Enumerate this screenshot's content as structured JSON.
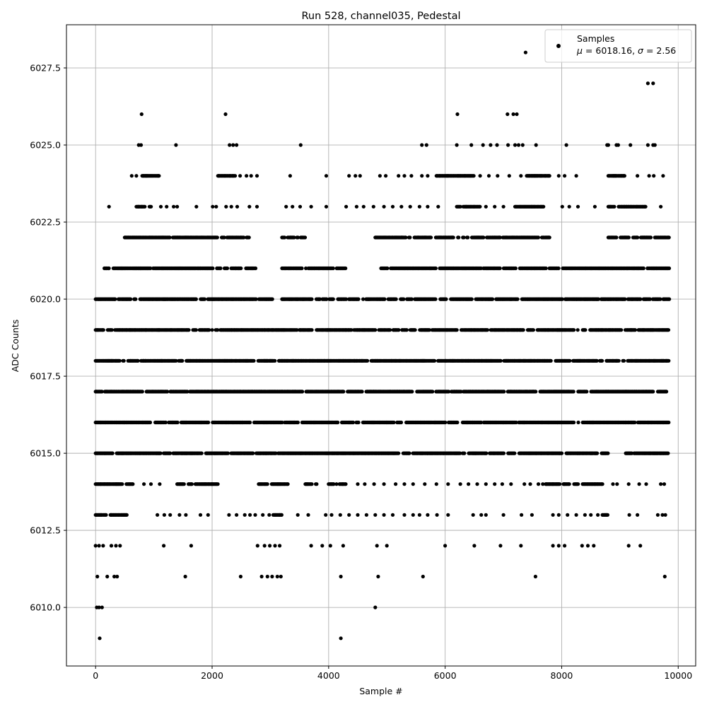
{
  "chart_data": {
    "type": "scatter",
    "title": "Run 528, channel035, Pedestal",
    "xlabel": "Sample #",
    "ylabel": "ADC Counts",
    "xlim": [
      -500,
      10300
    ],
    "ylim": [
      6008.1,
      6028.9
    ],
    "xticks": [
      0,
      2000,
      4000,
      6000,
      8000,
      10000
    ],
    "yticks": [
      6010.0,
      6012.5,
      6015.0,
      6017.5,
      6020.0,
      6022.5,
      6025.0,
      6027.5
    ],
    "xtick_labels": [
      "0",
      "2000",
      "4000",
      "6000",
      "8000",
      "10000"
    ],
    "ytick_labels": [
      "6010.0",
      "6012.5",
      "6015.0",
      "6017.5",
      "6020.0",
      "6022.5",
      "6025.0",
      "6027.5"
    ],
    "grid": true,
    "legend": {
      "position": "top-right",
      "label": "Samples",
      "stats": {
        "mu_label": "μ",
        "mu": "6018.16",
        "sigma_label": "σ",
        "sigma": "2.56"
      }
    },
    "marker_color": "#000000",
    "x_extent": [
      0,
      9850
    ],
    "series": [
      {
        "name": "Samples",
        "note": "dense bands: each level listed with the x-ranges where points densely fill it",
        "dense_levels": [
          {
            "y": 6015,
            "ranges": [
              [
                0,
                5700
              ],
              [
                5700,
                8800
              ],
              [
                9100,
                9840
              ]
            ]
          },
          {
            "y": 6016,
            "ranges": [
              [
                0,
                6220
              ],
              [
                6300,
                9850
              ]
            ]
          },
          {
            "y": 6017,
            "ranges": [
              [
                0,
                9850
              ]
            ]
          },
          {
            "y": 6018,
            "ranges": [
              [
                0,
                9850
              ]
            ]
          },
          {
            "y": 6019,
            "ranges": [
              [
                0,
                9850
              ]
            ]
          },
          {
            "y": 6020,
            "ranges": [
              [
                0,
                3050
              ],
              [
                3200,
                9850
              ]
            ]
          },
          {
            "y": 6021,
            "ranges": [
              [
                150,
                2750
              ],
              [
                3200,
                4300
              ],
              [
                4900,
                9850
              ]
            ]
          },
          {
            "y": 6022,
            "ranges": [
              [
                500,
                2650
              ],
              [
                3200,
                3600
              ],
              [
                4800,
                7800
              ],
              [
                8800,
                9850
              ]
            ]
          },
          {
            "y": 6014,
            "ranges": [
              [
                0,
                650
              ],
              [
                1400,
                2100
              ],
              [
                2800,
                3300
              ],
              [
                3600,
                3850
              ],
              [
                4000,
                4300
              ],
              [
                7600,
                8700
              ]
            ]
          },
          {
            "y": 6013,
            "ranges": [
              [
                0,
                550
              ],
              [
                3050,
                3200
              ],
              [
                8700,
                8800
              ]
            ]
          },
          {
            "y": 6023,
            "ranges": [
              [
                700,
                1000
              ],
              [
                6200,
                6600
              ],
              [
                7200,
                7700
              ],
              [
                8800,
                9450
              ]
            ]
          },
          {
            "y": 6024,
            "ranges": [
              [
                800,
                1100
              ],
              [
                2100,
                2400
              ],
              [
                5850,
                6500
              ],
              [
                7400,
                7800
              ],
              [
                8800,
                9100
              ]
            ]
          }
        ],
        "sparse_points": [
          [
            20,
            6010
          ],
          [
            60,
            6010
          ],
          [
            110,
            6010
          ],
          [
            70,
            6009
          ],
          [
            4210,
            6009
          ],
          [
            4800,
            6010
          ],
          [
            30,
            6011
          ],
          [
            200,
            6011
          ],
          [
            320,
            6011
          ],
          [
            370,
            6011
          ],
          [
            1540,
            6011
          ],
          [
            2490,
            6011
          ],
          [
            2850,
            6011
          ],
          [
            2950,
            6011
          ],
          [
            3030,
            6011
          ],
          [
            3120,
            6011
          ],
          [
            3180,
            6011
          ],
          [
            4210,
            6011
          ],
          [
            4850,
            6011
          ],
          [
            5620,
            6011
          ],
          [
            7550,
            6011
          ],
          [
            9770,
            6011
          ],
          [
            0,
            6012
          ],
          [
            60,
            6012
          ],
          [
            130,
            6012
          ],
          [
            270,
            6012
          ],
          [
            350,
            6012
          ],
          [
            420,
            6012
          ],
          [
            1170,
            6012
          ],
          [
            1640,
            6012
          ],
          [
            2780,
            6012
          ],
          [
            2900,
            6012
          ],
          [
            2990,
            6012
          ],
          [
            3080,
            6012
          ],
          [
            3160,
            6012
          ],
          [
            3700,
            6012
          ],
          [
            3890,
            6012
          ],
          [
            4030,
            6012
          ],
          [
            4250,
            6012
          ],
          [
            4830,
            6012
          ],
          [
            5000,
            6012
          ],
          [
            6000,
            6012
          ],
          [
            6500,
            6012
          ],
          [
            6950,
            6012
          ],
          [
            7300,
            6012
          ],
          [
            7850,
            6012
          ],
          [
            7950,
            6012
          ],
          [
            8050,
            6012
          ],
          [
            8350,
            6012
          ],
          [
            8450,
            6012
          ],
          [
            8550,
            6012
          ],
          [
            9150,
            6012
          ],
          [
            9350,
            6012
          ],
          [
            1060,
            6013
          ],
          [
            1180,
            6013
          ],
          [
            1280,
            6013
          ],
          [
            1440,
            6013
          ],
          [
            1550,
            6013
          ],
          [
            1800,
            6013
          ],
          [
            1930,
            6013
          ],
          [
            2290,
            6013
          ],
          [
            2420,
            6013
          ],
          [
            2560,
            6013
          ],
          [
            2650,
            6013
          ],
          [
            2740,
            6013
          ],
          [
            2870,
            6013
          ],
          [
            2980,
            6013
          ],
          [
            3470,
            6013
          ],
          [
            3650,
            6013
          ],
          [
            3950,
            6013
          ],
          [
            4050,
            6013
          ],
          [
            4200,
            6013
          ],
          [
            4350,
            6013
          ],
          [
            4500,
            6013
          ],
          [
            4650,
            6013
          ],
          [
            4800,
            6013
          ],
          [
            4950,
            6013
          ],
          [
            5100,
            6013
          ],
          [
            5300,
            6013
          ],
          [
            5450,
            6013
          ],
          [
            5560,
            6013
          ],
          [
            5700,
            6013
          ],
          [
            5860,
            6013
          ],
          [
            6050,
            6013
          ],
          [
            6480,
            6013
          ],
          [
            6620,
            6013
          ],
          [
            6700,
            6013
          ],
          [
            7000,
            6013
          ],
          [
            7310,
            6013
          ],
          [
            7490,
            6013
          ],
          [
            7850,
            6013
          ],
          [
            7950,
            6013
          ],
          [
            8100,
            6013
          ],
          [
            8250,
            6013
          ],
          [
            8400,
            6013
          ],
          [
            8500,
            6013
          ],
          [
            8620,
            6013
          ],
          [
            9160,
            6013
          ],
          [
            9300,
            6013
          ],
          [
            9650,
            6013
          ],
          [
            9730,
            6013
          ],
          [
            9780,
            6013
          ],
          [
            830,
            6014
          ],
          [
            950,
            6014
          ],
          [
            1100,
            6014
          ],
          [
            4500,
            6014
          ],
          [
            4620,
            6014
          ],
          [
            4780,
            6014
          ],
          [
            4950,
            6014
          ],
          [
            5150,
            6014
          ],
          [
            5300,
            6014
          ],
          [
            5450,
            6014
          ],
          [
            5650,
            6014
          ],
          [
            5850,
            6014
          ],
          [
            6050,
            6014
          ],
          [
            6260,
            6014
          ],
          [
            6400,
            6014
          ],
          [
            6550,
            6014
          ],
          [
            6700,
            6014
          ],
          [
            6850,
            6014
          ],
          [
            6980,
            6014
          ],
          [
            7130,
            6014
          ],
          [
            7360,
            6014
          ],
          [
            7460,
            6014
          ],
          [
            8880,
            6014
          ],
          [
            8950,
            6014
          ],
          [
            9150,
            6014
          ],
          [
            9330,
            6014
          ],
          [
            9450,
            6014
          ],
          [
            9700,
            6014
          ],
          [
            9760,
            6014
          ],
          [
            230,
            6023
          ],
          [
            1120,
            6023
          ],
          [
            1220,
            6023
          ],
          [
            1340,
            6023
          ],
          [
            1400,
            6023
          ],
          [
            1730,
            6023
          ],
          [
            2010,
            6023
          ],
          [
            2070,
            6023
          ],
          [
            2240,
            6023
          ],
          [
            2330,
            6023
          ],
          [
            2430,
            6023
          ],
          [
            2640,
            6023
          ],
          [
            2770,
            6023
          ],
          [
            3270,
            6023
          ],
          [
            3380,
            6023
          ],
          [
            3510,
            6023
          ],
          [
            3700,
            6023
          ],
          [
            3960,
            6023
          ],
          [
            4300,
            6023
          ],
          [
            4480,
            6023
          ],
          [
            4600,
            6023
          ],
          [
            4770,
            6023
          ],
          [
            4950,
            6023
          ],
          [
            5100,
            6023
          ],
          [
            5250,
            6023
          ],
          [
            5400,
            6023
          ],
          [
            5560,
            6023
          ],
          [
            5700,
            6023
          ],
          [
            5880,
            6023
          ],
          [
            6700,
            6023
          ],
          [
            6850,
            6023
          ],
          [
            7000,
            6023
          ],
          [
            8010,
            6023
          ],
          [
            8130,
            6023
          ],
          [
            8280,
            6023
          ],
          [
            8570,
            6023
          ],
          [
            9700,
            6023
          ],
          [
            620,
            6024
          ],
          [
            700,
            6024
          ],
          [
            2480,
            6024
          ],
          [
            2590,
            6024
          ],
          [
            2670,
            6024
          ],
          [
            2770,
            6024
          ],
          [
            3340,
            6024
          ],
          [
            3960,
            6024
          ],
          [
            4350,
            6024
          ],
          [
            4460,
            6024
          ],
          [
            4540,
            6024
          ],
          [
            4880,
            6024
          ],
          [
            4980,
            6024
          ],
          [
            5200,
            6024
          ],
          [
            5300,
            6024
          ],
          [
            5420,
            6024
          ],
          [
            5600,
            6024
          ],
          [
            5700,
            6024
          ],
          [
            6600,
            6024
          ],
          [
            6750,
            6024
          ],
          [
            6900,
            6024
          ],
          [
            7100,
            6024
          ],
          [
            7300,
            6024
          ],
          [
            7950,
            6024
          ],
          [
            8050,
            6024
          ],
          [
            8250,
            6024
          ],
          [
            9300,
            6024
          ],
          [
            9500,
            6024
          ],
          [
            9580,
            6024
          ],
          [
            9740,
            6024
          ],
          [
            740,
            6025
          ],
          [
            780,
            6025
          ],
          [
            1380,
            6025
          ],
          [
            2300,
            6025
          ],
          [
            2360,
            6025
          ],
          [
            2420,
            6025
          ],
          [
            3520,
            6025
          ],
          [
            5600,
            6025
          ],
          [
            5680,
            6025
          ],
          [
            6200,
            6025
          ],
          [
            6450,
            6025
          ],
          [
            6650,
            6025
          ],
          [
            6780,
            6025
          ],
          [
            6890,
            6025
          ],
          [
            7080,
            6025
          ],
          [
            7200,
            6025
          ],
          [
            7260,
            6025
          ],
          [
            7330,
            6025
          ],
          [
            7560,
            6025
          ],
          [
            8080,
            6025
          ],
          [
            8780,
            6025
          ],
          [
            8800,
            6025
          ],
          [
            8940,
            6025
          ],
          [
            8970,
            6025
          ],
          [
            9180,
            6025
          ],
          [
            9480,
            6025
          ],
          [
            9570,
            6025
          ],
          [
            9600,
            6025
          ],
          [
            790,
            6026
          ],
          [
            2230,
            6026
          ],
          [
            6210,
            6026
          ],
          [
            7070,
            6026
          ],
          [
            7170,
            6026
          ],
          [
            7230,
            6026
          ],
          [
            9480,
            6027
          ],
          [
            9570,
            6027
          ],
          [
            7380,
            6028
          ]
        ]
      }
    ]
  }
}
